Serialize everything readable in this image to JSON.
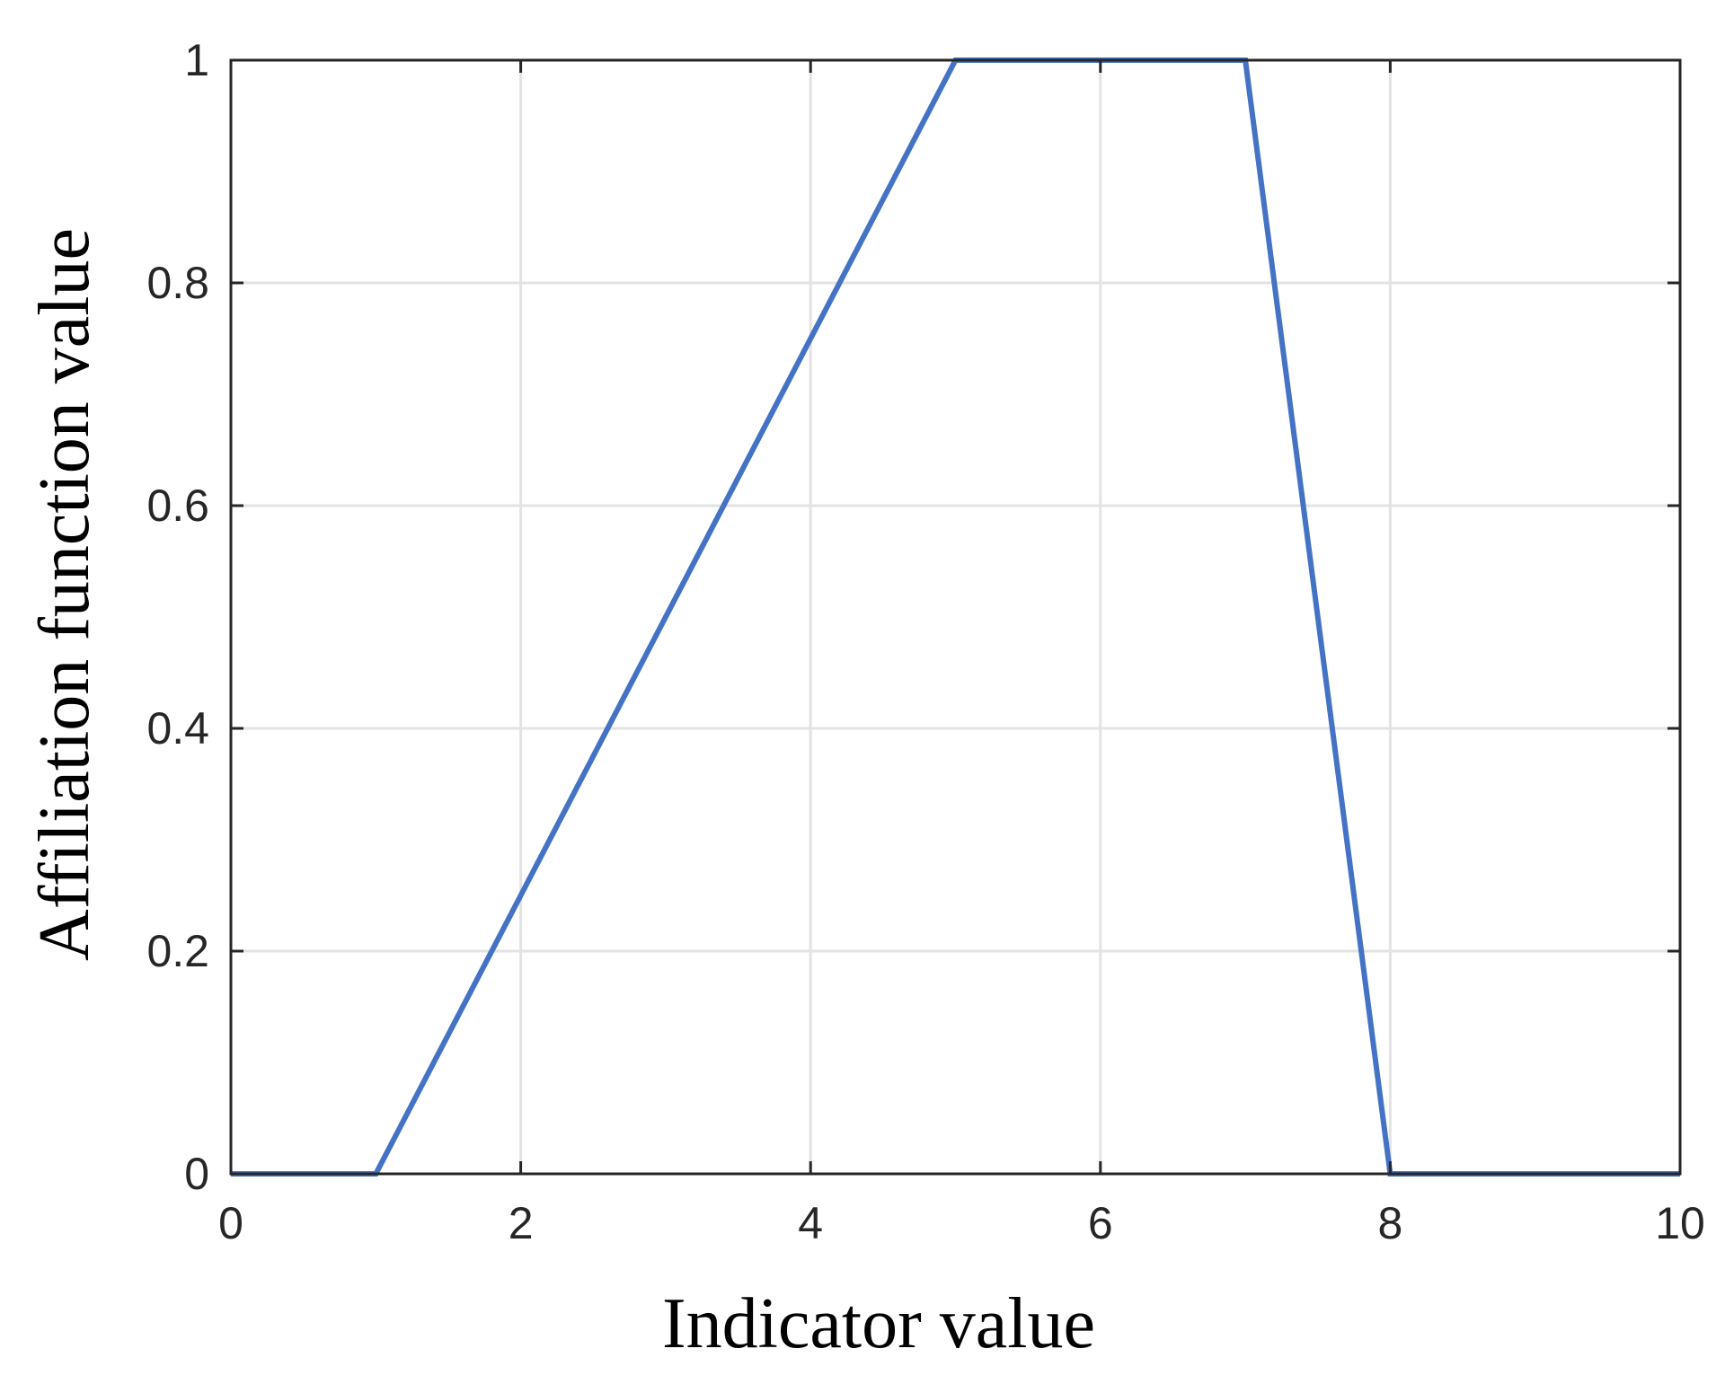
{
  "chart_data": {
    "type": "line",
    "title": "",
    "xlabel": "Indicator value",
    "ylabel": "Affiliation function value",
    "xlim": [
      0,
      10
    ],
    "ylim": [
      0,
      1
    ],
    "xticks": [
      0,
      2,
      4,
      6,
      8,
      10
    ],
    "yticks": [
      0,
      0.2,
      0.4,
      0.6,
      0.8,
      1
    ],
    "xtick_labels": [
      "0",
      "2",
      "4",
      "6",
      "8",
      "10"
    ],
    "ytick_labels": [
      "0",
      "0.2",
      "0.4",
      "0.6",
      "0.8",
      "1"
    ],
    "grid": true,
    "series": [
      {
        "x": [
          0,
          1,
          5,
          7,
          8,
          10
        ],
        "y": [
          0,
          0,
          1,
          1,
          0,
          0
        ],
        "color": "#4472c4"
      }
    ]
  }
}
